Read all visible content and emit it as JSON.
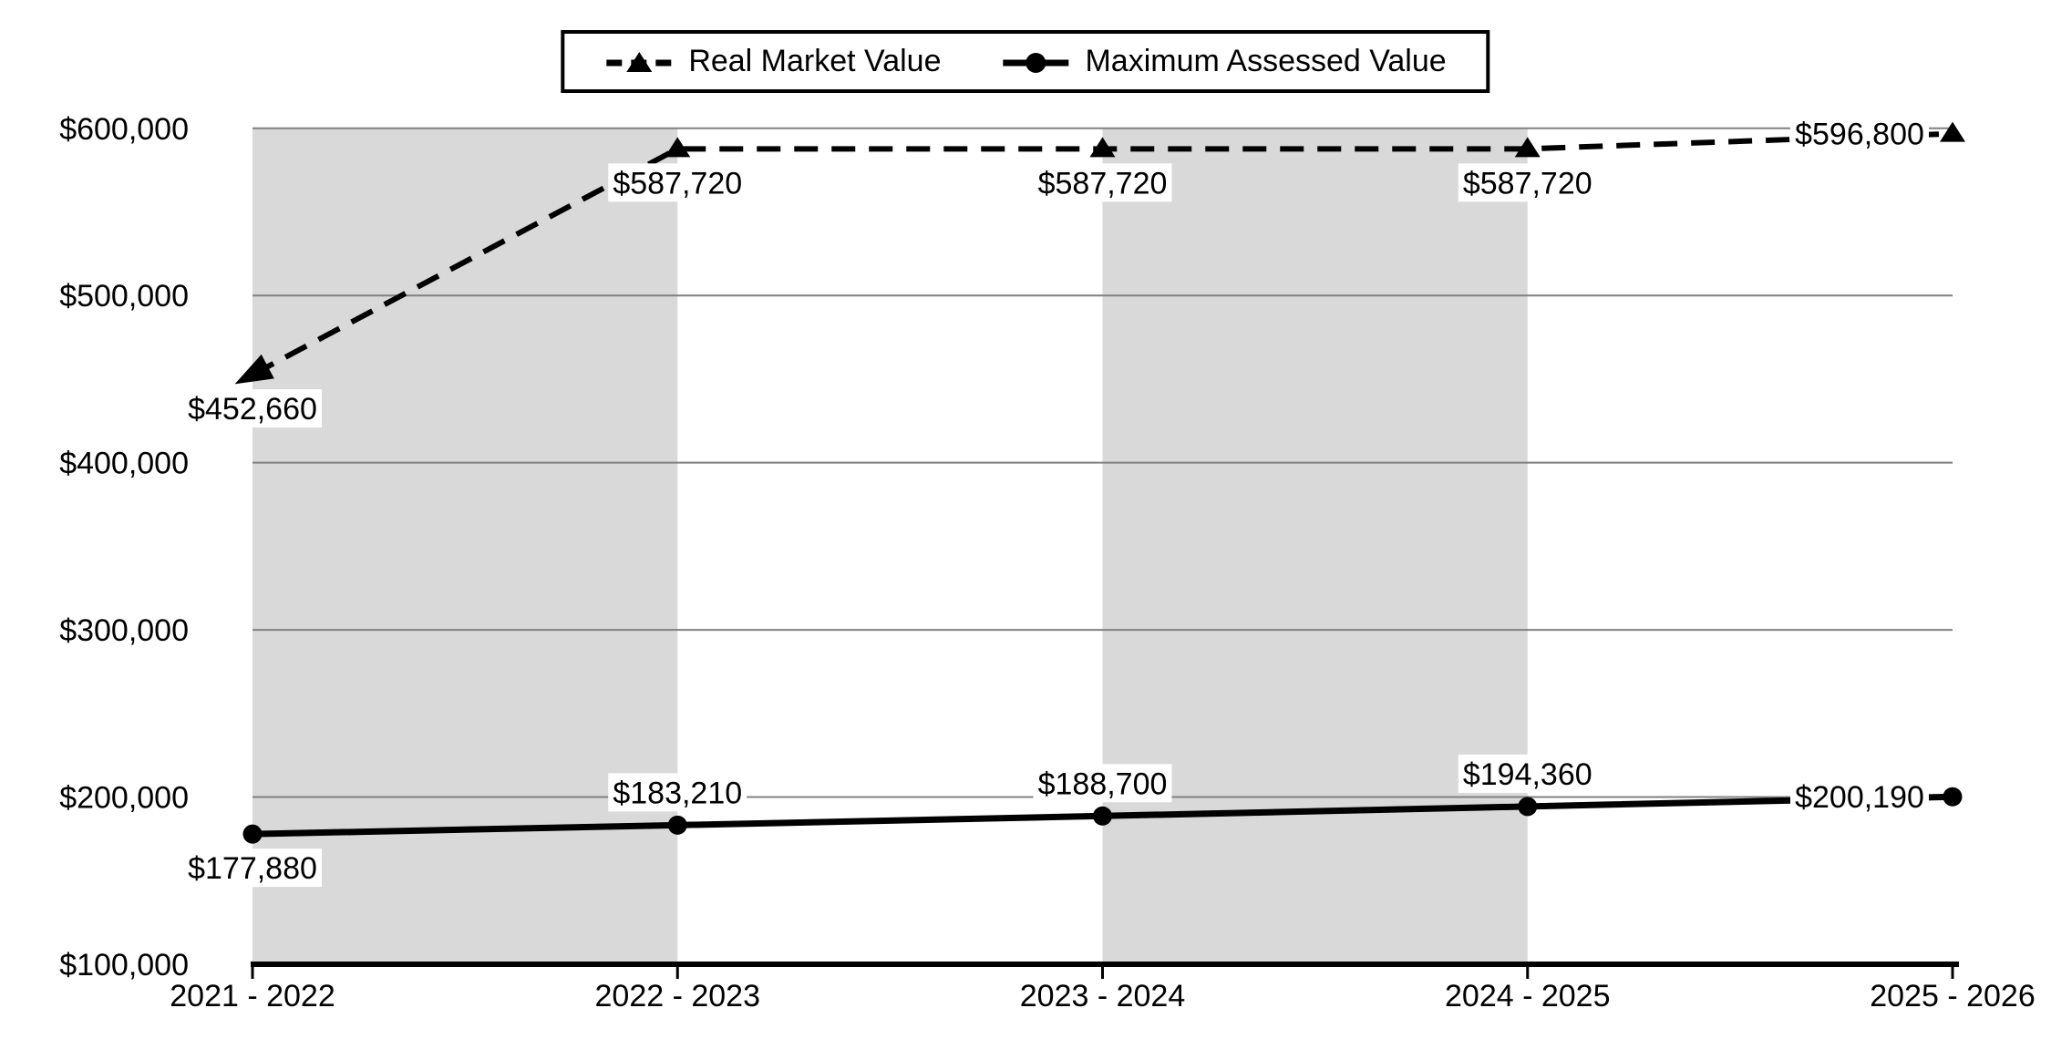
{
  "chart_data": {
    "type": "line",
    "categories": [
      "2021 - 2022",
      "2022 - 2023",
      "2023 - 2024",
      "2024 - 2025",
      "2025 - 2026"
    ],
    "series": [
      {
        "name": "Real Market Value",
        "line_style": "dashed",
        "marker": "triangle",
        "color": "#000000",
        "values": [
          452660,
          587720,
          587720,
          587720,
          596800
        ],
        "point_labels": [
          "$452,660",
          "$587,720",
          "$587,720",
          "$587,720",
          "$596,800"
        ],
        "point_label_positions": [
          "below",
          "below",
          "below",
          "below",
          "left"
        ]
      },
      {
        "name": "Maximum Assessed Value",
        "line_style": "solid",
        "marker": "circle",
        "color": "#000000",
        "values": [
          177880,
          183210,
          188700,
          194360,
          200190
        ],
        "point_labels": [
          "$177,880",
          "$183,210",
          "$188,700",
          "$194,360",
          "$200,190"
        ],
        "point_label_positions": [
          "below",
          "above",
          "above",
          "above",
          "left"
        ]
      }
    ],
    "ylim": [
      100000,
      600000
    ],
    "y_axis": {
      "min": 100000,
      "max": 600000,
      "step": 100000,
      "tick_labels": [
        "$100,000",
        "$200,000",
        "$300,000",
        "$400,000",
        "$500,000",
        "$600,000"
      ]
    },
    "legend": {
      "position": "top-center",
      "border": true
    },
    "plot": {
      "grid": "horizontal",
      "gridline_color": "#808080",
      "band_color": "#d9d9d9",
      "axis_color": "#000000",
      "label_bg": "#ffffff",
      "text_color": "#000000",
      "shaded_column_ranges": [
        [
          0,
          1
        ],
        [
          2,
          3
        ]
      ]
    }
  }
}
